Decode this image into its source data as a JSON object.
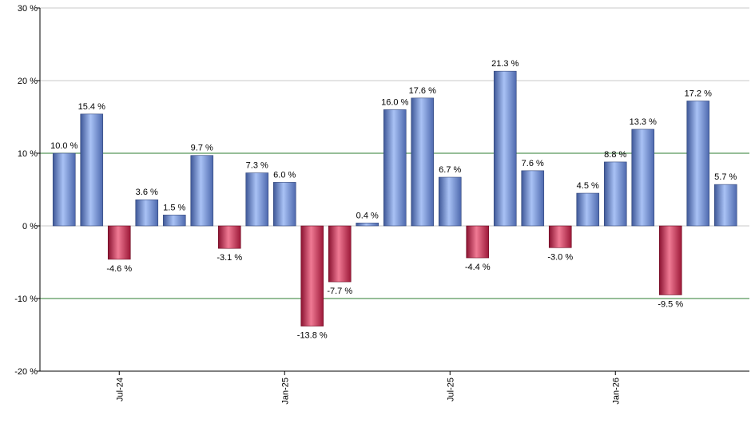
{
  "chart_data": {
    "type": "bar",
    "title": "",
    "xlabel": "",
    "ylabel": "",
    "ylim": [
      -20,
      30
    ],
    "y_ticks": [
      -20,
      -10,
      0,
      10,
      20,
      30
    ],
    "y_tick_labels": [
      "-20 %",
      "-10 %",
      "0 %",
      "10 %",
      "20 %",
      "30 %"
    ],
    "value_suffix": " %",
    "x_tick_labels": [
      "Jul-24",
      "Jan-25",
      "Jul-25",
      "Jan-26"
    ],
    "x_tick_positions": [
      2,
      8,
      14,
      20
    ],
    "values": [
      10.0,
      15.4,
      -4.6,
      3.6,
      1.5,
      9.7,
      -3.1,
      7.3,
      6.0,
      -13.8,
      -7.7,
      0.4,
      16.0,
      17.6,
      6.7,
      -4.4,
      21.3,
      7.6,
      -3.0,
      4.5,
      8.8,
      13.3,
      -9.5,
      17.2,
      5.7
    ],
    "reference_lines": [
      10,
      -10
    ],
    "grid": true,
    "colors": {
      "positive": "#6f8fd8",
      "negative": "#c23a5a",
      "reference_line": "#2e7d32",
      "grid": "#c8c8c8",
      "axis": "#000000"
    }
  }
}
